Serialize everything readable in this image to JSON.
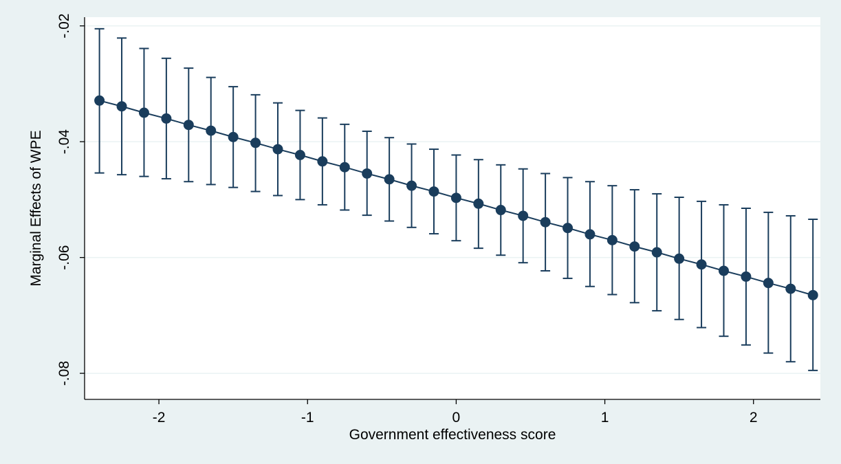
{
  "chart_data": {
    "type": "scatter",
    "xlabel": "Government effectiveness score",
    "ylabel": "Marginal Effects of WPE",
    "xlim": [
      -2.5,
      2.45
    ],
    "ylim": [
      -0.0845,
      -0.0185
    ],
    "xticks": [
      {
        "value": -2,
        "label": "-2"
      },
      {
        "value": -1,
        "label": "-1"
      },
      {
        "value": 0,
        "label": "0"
      },
      {
        "value": 1,
        "label": "1"
      },
      {
        "value": 2,
        "label": "2"
      }
    ],
    "yticks": [
      {
        "value": -0.02,
        "label": "-.02"
      },
      {
        "value": -0.04,
        "label": "-.04"
      },
      {
        "value": -0.06,
        "label": "-.06"
      },
      {
        "value": -0.08,
        "label": "-.08"
      }
    ],
    "grid": "horizontal",
    "series": [
      {
        "x": [
          -2.4,
          -2.25,
          -2.1,
          -1.95,
          -1.8,
          -1.65,
          -1.5,
          -1.35,
          -1.2,
          -1.05,
          -0.9,
          -0.75,
          -0.6,
          -0.45,
          -0.3,
          -0.15,
          0.0,
          0.15,
          0.3,
          0.45,
          0.6,
          0.75,
          0.9,
          1.05,
          1.2,
          1.35,
          1.5,
          1.65,
          1.8,
          1.95,
          2.1,
          2.25,
          2.4
        ],
        "y": [
          -0.0329,
          -0.0339,
          -0.035,
          -0.036,
          -0.0371,
          -0.0381,
          -0.0392,
          -0.0402,
          -0.0413,
          -0.0423,
          -0.0434,
          -0.0444,
          -0.0455,
          -0.0465,
          -0.0476,
          -0.0486,
          -0.0497,
          -0.0507,
          -0.0518,
          -0.0528,
          -0.0539,
          -0.0549,
          -0.056,
          -0.057,
          -0.0581,
          -0.0591,
          -0.0602,
          -0.0612,
          -0.0623,
          -0.0633,
          -0.0644,
          -0.0654,
          -0.0665
        ],
        "ci_low": [
          -0.0454,
          -0.0457,
          -0.046,
          -0.0464,
          -0.0469,
          -0.0474,
          -0.0479,
          -0.0486,
          -0.0493,
          -0.05,
          -0.0509,
          -0.0518,
          -0.0527,
          -0.0537,
          -0.0548,
          -0.0559,
          -0.0571,
          -0.0584,
          -0.0596,
          -0.0609,
          -0.0623,
          -0.0636,
          -0.065,
          -0.0664,
          -0.0678,
          -0.0692,
          -0.0707,
          -0.0721,
          -0.0736,
          -0.0751,
          -0.0765,
          -0.078,
          -0.0795
        ],
        "ci_high": [
          -0.0205,
          -0.0221,
          -0.0239,
          -0.0256,
          -0.0273,
          -0.0289,
          -0.0305,
          -0.0319,
          -0.0333,
          -0.0346,
          -0.0359,
          -0.037,
          -0.0382,
          -0.0393,
          -0.0404,
          -0.0413,
          -0.0423,
          -0.0431,
          -0.044,
          -0.0447,
          -0.0455,
          -0.0462,
          -0.0469,
          -0.0476,
          -0.0483,
          -0.049,
          -0.0496,
          -0.0503,
          -0.0509,
          -0.0515,
          -0.0522,
          -0.0528,
          -0.0534
        ]
      }
    ],
    "colors": {
      "background": "#eaf2f3",
      "plot_area": "#ffffff",
      "series": "#1a3d5c",
      "grid": "#eaf2f3",
      "axis": "#000000"
    }
  }
}
